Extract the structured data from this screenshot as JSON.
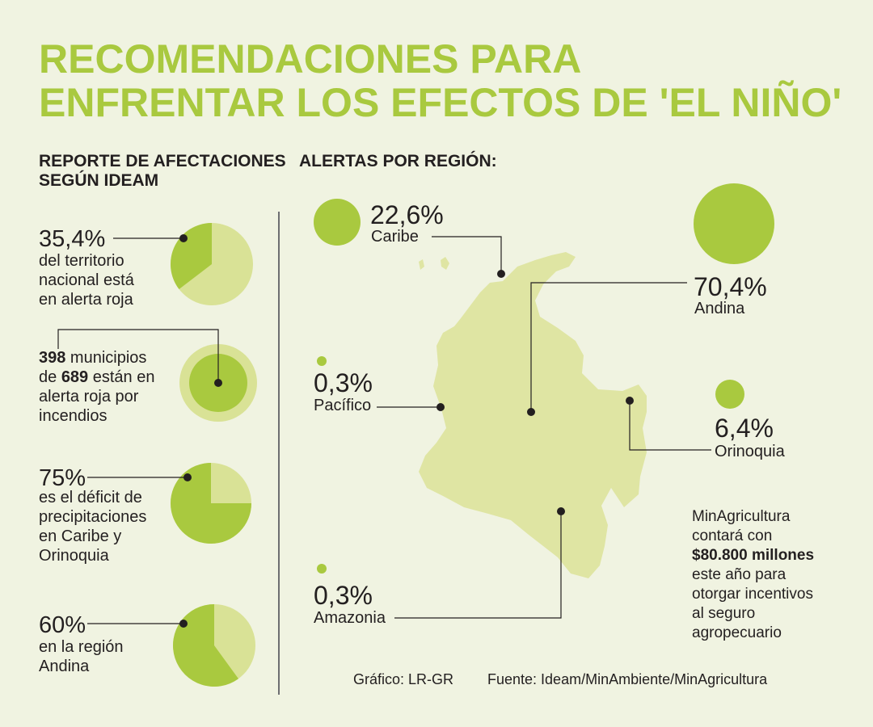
{
  "title": {
    "line1": "RECOMENDACIONES PARA",
    "line2": "ENFRENTAR LOS EFECTOS DE 'EL NIÑO'"
  },
  "left_heading": {
    "line1": "REPORTE DE AFECTACIONES",
    "line2": "SEGÚN IDEAM"
  },
  "right_heading": "ALERTAS POR REGIÓN:",
  "colors": {
    "title": "#a9c93f",
    "dark_green": "#a9c93f",
    "light_green": "#d9e296",
    "map": "#dfe5a3",
    "text": "#231f20"
  },
  "stats": [
    {
      "value": "35,4%",
      "lines": [
        "del territorio",
        "nacional está",
        "en alerta roja"
      ]
    },
    {
      "value": "",
      "number_a": "398",
      "text_a": " municipios",
      "prefix_b": "de ",
      "number_b": "689",
      "text_b": " están en",
      "line3": "alerta roja por",
      "line4": "incendios"
    },
    {
      "value": "75%",
      "lines": [
        "es el déficit de",
        "precipitaciones",
        "en Caribe y",
        "Orinoquia"
      ]
    },
    {
      "value": "60%",
      "lines": [
        "en la región",
        "Andina"
      ]
    }
  ],
  "regions": [
    {
      "pct": "22,6%",
      "name": "Caribe"
    },
    {
      "pct": "70,4%",
      "name": "Andina"
    },
    {
      "pct": "0,3%",
      "name": "Pacífico"
    },
    {
      "pct": "6,4%",
      "name": "Orinoquia"
    },
    {
      "pct": "0,3%",
      "name": "Amazonia"
    }
  ],
  "note": {
    "line1": "MinAgricultura",
    "line2": "contará con",
    "amount": "$80.800 millones",
    "line4": "este año para",
    "line5": "otorgar incentivos",
    "line6": "al seguro",
    "line7": "agropecuario"
  },
  "footer": {
    "graphic": "Gráfico: LR-GR",
    "source": "Fuente: Ideam/MinAmbiente/MinAgricultura"
  },
  "chart_data": [
    {
      "type": "pie",
      "categories": [
        "alerta roja",
        "resto"
      ],
      "values": [
        35.4,
        64.6
      ]
    },
    {
      "type": "pie",
      "categories": [
        "municipios en alerta roja",
        "resto"
      ],
      "values": [
        398,
        291
      ]
    },
    {
      "type": "pie",
      "categories": [
        "déficit",
        "resto"
      ],
      "values": [
        75,
        25
      ]
    },
    {
      "type": "pie",
      "categories": [
        "Andina",
        "resto"
      ],
      "values": [
        60,
        40
      ]
    },
    {
      "type": "bubble",
      "categories": [
        "Caribe",
        "Andina",
        "Pacífico",
        "Orinoquia",
        "Amazonia"
      ],
      "values": [
        22.6,
        70.4,
        0.3,
        6.4,
        0.3
      ]
    }
  ]
}
